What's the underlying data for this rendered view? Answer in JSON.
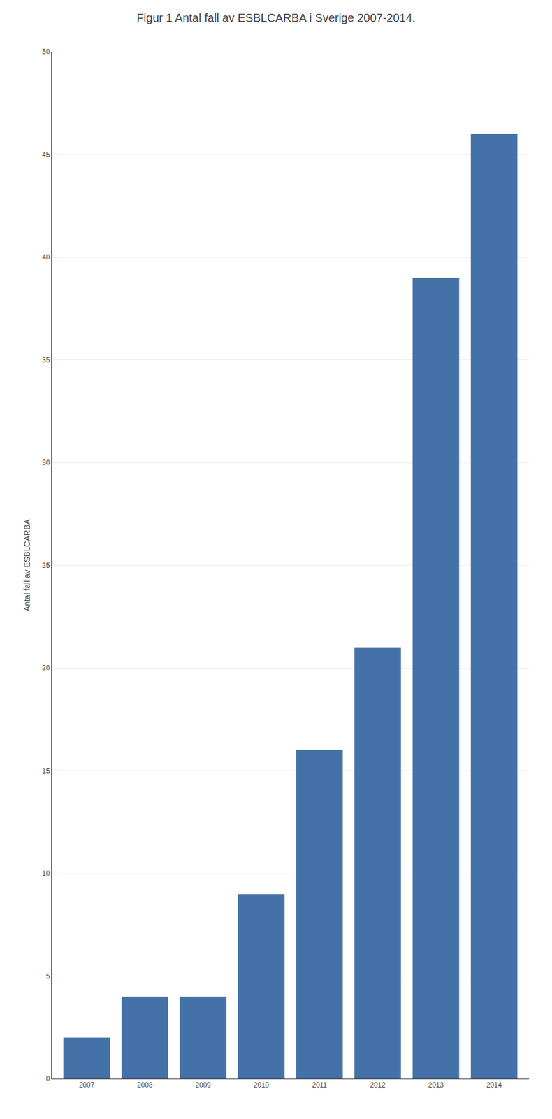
{
  "chart_data": {
    "type": "bar",
    "title": "Figur 1 Antal fall av ESBLCARBA i Sverige 2007-2014.",
    "ylabel": "Antal fall av ESBLCARBA",
    "categories": [
      "2007",
      "2008",
      "2009",
      "2010",
      "2011",
      "2012",
      "2013",
      "2014"
    ],
    "values": [
      2,
      4,
      4,
      9,
      16,
      21,
      39,
      46
    ],
    "color": "#4472a8",
    "ylim": [
      0,
      50
    ],
    "yticks": [
      0,
      5,
      10,
      15,
      20,
      25,
      30,
      35,
      40,
      45,
      50
    ],
    "grid": true
  }
}
